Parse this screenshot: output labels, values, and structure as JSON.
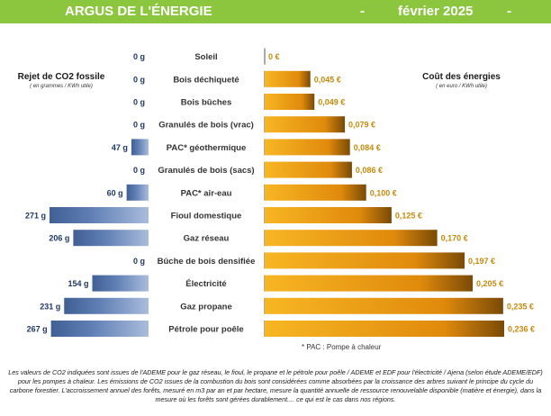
{
  "header": {
    "title": "ARGUS DE L'ÉNERGIE",
    "dash_left": "-",
    "date": "février 2025",
    "dash_right": "-"
  },
  "left_panel": {
    "title": "Rejet de CO2 fossile",
    "subtitle": "( en grammes / KWh utile)"
  },
  "right_panel": {
    "title": "Coût des énergies",
    "subtitle": "( en euro / KWh utile)"
  },
  "chart_data": {
    "type": "bar",
    "orientation": "horizontal",
    "layout": "back-to-back",
    "categories": [
      "Soleil",
      "Bois déchiqueté",
      "Bois bûches",
      "Granulés de bois (vrac)",
      "PAC* géothermique",
      "Granulés de bois (sacs)",
      "PAC* air-eau",
      "Fioul domestique",
      "Gaz réseau",
      "Bûche de bois densifiée",
      "Électricité",
      "Gaz propane",
      "Pétrole pour poêle"
    ],
    "series": [
      {
        "name": "Rejet de CO2 fossile",
        "unit": "g / KWh utile",
        "values": [
          0,
          0,
          0,
          0,
          47,
          0,
          60,
          271,
          206,
          0,
          154,
          231,
          267
        ],
        "labels": [
          "0 g",
          "0 g",
          "0 g",
          "0 g",
          "47 g",
          "0 g",
          "60 g",
          "271 g",
          "206 g",
          "0 g",
          "154 g",
          "231 g",
          "267 g"
        ],
        "color": "#4f6fa3"
      },
      {
        "name": "Coût des énergies",
        "unit": "€ / KWh utile",
        "values": [
          0,
          0.045,
          0.049,
          0.079,
          0.084,
          0.086,
          0.1,
          0.125,
          0.17,
          0.197,
          0.205,
          0.235,
          0.236
        ],
        "labels": [
          "0 €",
          "0,045 €",
          "0,049 €",
          "0,079 €",
          "0,084 €",
          "0,086 €",
          "0,100 €",
          "0,125 €",
          "0,170 €",
          "0,197 €",
          "0,205 €",
          "0,235 €",
          "0,236 €"
        ],
        "color": "#f0a010"
      }
    ],
    "xlim_co2": [
      0,
      271
    ],
    "xlim_cost": [
      0,
      0.236
    ]
  },
  "colors": {
    "banner": "#8cc63f",
    "co2_bar_dark": "#3f5f95",
    "co2_bar_light": "#9fb4d6",
    "cost_bar_dark": "#7a4a06",
    "cost_bar_light": "#f7b623",
    "co2_label": "#1f3864",
    "cost_label": "#c58a0b",
    "category_label": "#333333"
  },
  "footnote": "* PAC : Pompe à chaleur",
  "bottom_note": "Les valeurs de CO2 indiquées sont issues de l'ADEME pour le gaz réseau, le fioul, le propane et le pétrole pour poêle / ADEME et EDF pour l'électricité / Ajena (selon étude ADEME/EDF) pour les pompes à chaleur. Les émissions de CO2 issues de la combustion du bois sont considérées comme absorbées par la croissance des arbres suivant le principe du cycle du carbone forestier. L'accroissement annuel des forêts, mesuré en m3 par an et par hectare, mesure la quantité annuelle de ressource renouvelable disponible (matière et énergie), dans la mesure où les forêts sont gérées durablement.... ce qui est le cas dans nos régions."
}
